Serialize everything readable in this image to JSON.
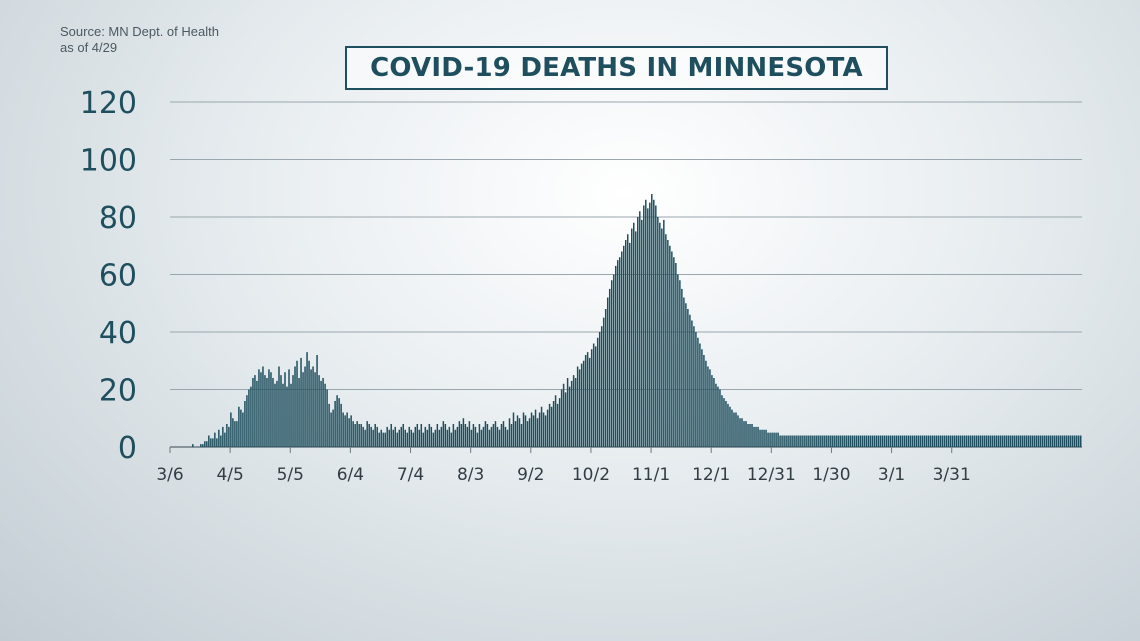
{
  "source": {
    "line1": "Source: MN Dept. of Health",
    "line2": "as of 4/29"
  },
  "chart_data": {
    "type": "bar",
    "title": "COVID-19 DEATHS IN MINNESOTA",
    "x_start": "2020-03-06",
    "ylim": [
      0,
      120
    ],
    "yticks": [
      0,
      20,
      40,
      60,
      80,
      100,
      120
    ],
    "xticks": [
      "3/6",
      "4/5",
      "5/5",
      "6/4",
      "7/4",
      "8/3",
      "9/2",
      "10/2",
      "11/1",
      "12/1",
      "12/31",
      "1/30",
      "3/1",
      "3/31"
    ],
    "grid": true,
    "bar_color": "#1f4f5e",
    "values": [
      0,
      0,
      0,
      0,
      0,
      0,
      0,
      0,
      0,
      0,
      0,
      1,
      0,
      0,
      0,
      1,
      1,
      2,
      2,
      4,
      3,
      3,
      5,
      3,
      6,
      4,
      7,
      5,
      8,
      7,
      12,
      10,
      9,
      9,
      14,
      13,
      12,
      16,
      18,
      20,
      21,
      24,
      25,
      23,
      27,
      26,
      28,
      25,
      24,
      27,
      26,
      24,
      22,
      23,
      28,
      25,
      22,
      26,
      21,
      27,
      22,
      25,
      28,
      30,
      24,
      31,
      26,
      28,
      33,
      30,
      27,
      28,
      26,
      32,
      25,
      23,
      24,
      22,
      20,
      15,
      12,
      13,
      16,
      18,
      17,
      15,
      12,
      11,
      12,
      10,
      11,
      9,
      8,
      9,
      8,
      8,
      7,
      6,
      9,
      8,
      7,
      6,
      8,
      7,
      5,
      6,
      5,
      5,
      7,
      6,
      8,
      6,
      7,
      5,
      6,
      7,
      8,
      6,
      5,
      7,
      6,
      5,
      7,
      8,
      6,
      8,
      5,
      7,
      6,
      8,
      7,
      5,
      6,
      8,
      6,
      7,
      9,
      8,
      6,
      7,
      5,
      8,
      6,
      7,
      9,
      8,
      10,
      8,
      7,
      9,
      6,
      8,
      7,
      5,
      8,
      6,
      7,
      9,
      8,
      6,
      7,
      8,
      9,
      7,
      6,
      8,
      9,
      7,
      6,
      10,
      8,
      12,
      9,
      11,
      10,
      8,
      12,
      11,
      9,
      10,
      12,
      11,
      13,
      10,
      12,
      14,
      12,
      11,
      13,
      15,
      14,
      16,
      18,
      15,
      17,
      20,
      22,
      19,
      24,
      21,
      23,
      25,
      24,
      28,
      27,
      29,
      30,
      32,
      33,
      31,
      34,
      36,
      35,
      38,
      40,
      42,
      45,
      48,
      52,
      55,
      58,
      60,
      63,
      65,
      66,
      68,
      70,
      72,
      74,
      71,
      76,
      78,
      75,
      80,
      82,
      79,
      84,
      86,
      83,
      85,
      88,
      86,
      84,
      80,
      78,
      76,
      79,
      74,
      72,
      70,
      68,
      66,
      64,
      60,
      58,
      55,
      52,
      50,
      48,
      46,
      44,
      42,
      40,
      38,
      36,
      34,
      32,
      30,
      28,
      27,
      25,
      24,
      22,
      21,
      20,
      18,
      17,
      16,
      15,
      14,
      13,
      12,
      12,
      11,
      10,
      10,
      9,
      9,
      8,
      8,
      8,
      7,
      7,
      7,
      6,
      6,
      6,
      6,
      5,
      5,
      5,
      5,
      5,
      5,
      4,
      4,
      4,
      4,
      4,
      4,
      4,
      4,
      4,
      4,
      4,
      4,
      4,
      4,
      4,
      4,
      4,
      4,
      4,
      4,
      4,
      4,
      4,
      4,
      4,
      4,
      4,
      4,
      4,
      4,
      4,
      4,
      4,
      4,
      4,
      4,
      4,
      4,
      4,
      4,
      4,
      4,
      4,
      4,
      4,
      4,
      4,
      4,
      4,
      4,
      4,
      4,
      4,
      4,
      4,
      4,
      4,
      4,
      4,
      4,
      4,
      4,
      4,
      4,
      4,
      4,
      4,
      4,
      4,
      4,
      4,
      4,
      4,
      4,
      4,
      4,
      4,
      4,
      4,
      4,
      4,
      4,
      4,
      4,
      4,
      4,
      4,
      4,
      4,
      4,
      4,
      4,
      4,
      4,
      4,
      4,
      4,
      4,
      4,
      4,
      4,
      4,
      4,
      4,
      4,
      4,
      4,
      4,
      4,
      4,
      4,
      4,
      4,
      4,
      4,
      4,
      4,
      4,
      4,
      4,
      4,
      4,
      4,
      4,
      4,
      4,
      4,
      4,
      4,
      4,
      4,
      4,
      4,
      4,
      4,
      4,
      4,
      4,
      4,
      4,
      4,
      4,
      4,
      4,
      4,
      4,
      4,
      4,
      4,
      4,
      4
    ]
  }
}
